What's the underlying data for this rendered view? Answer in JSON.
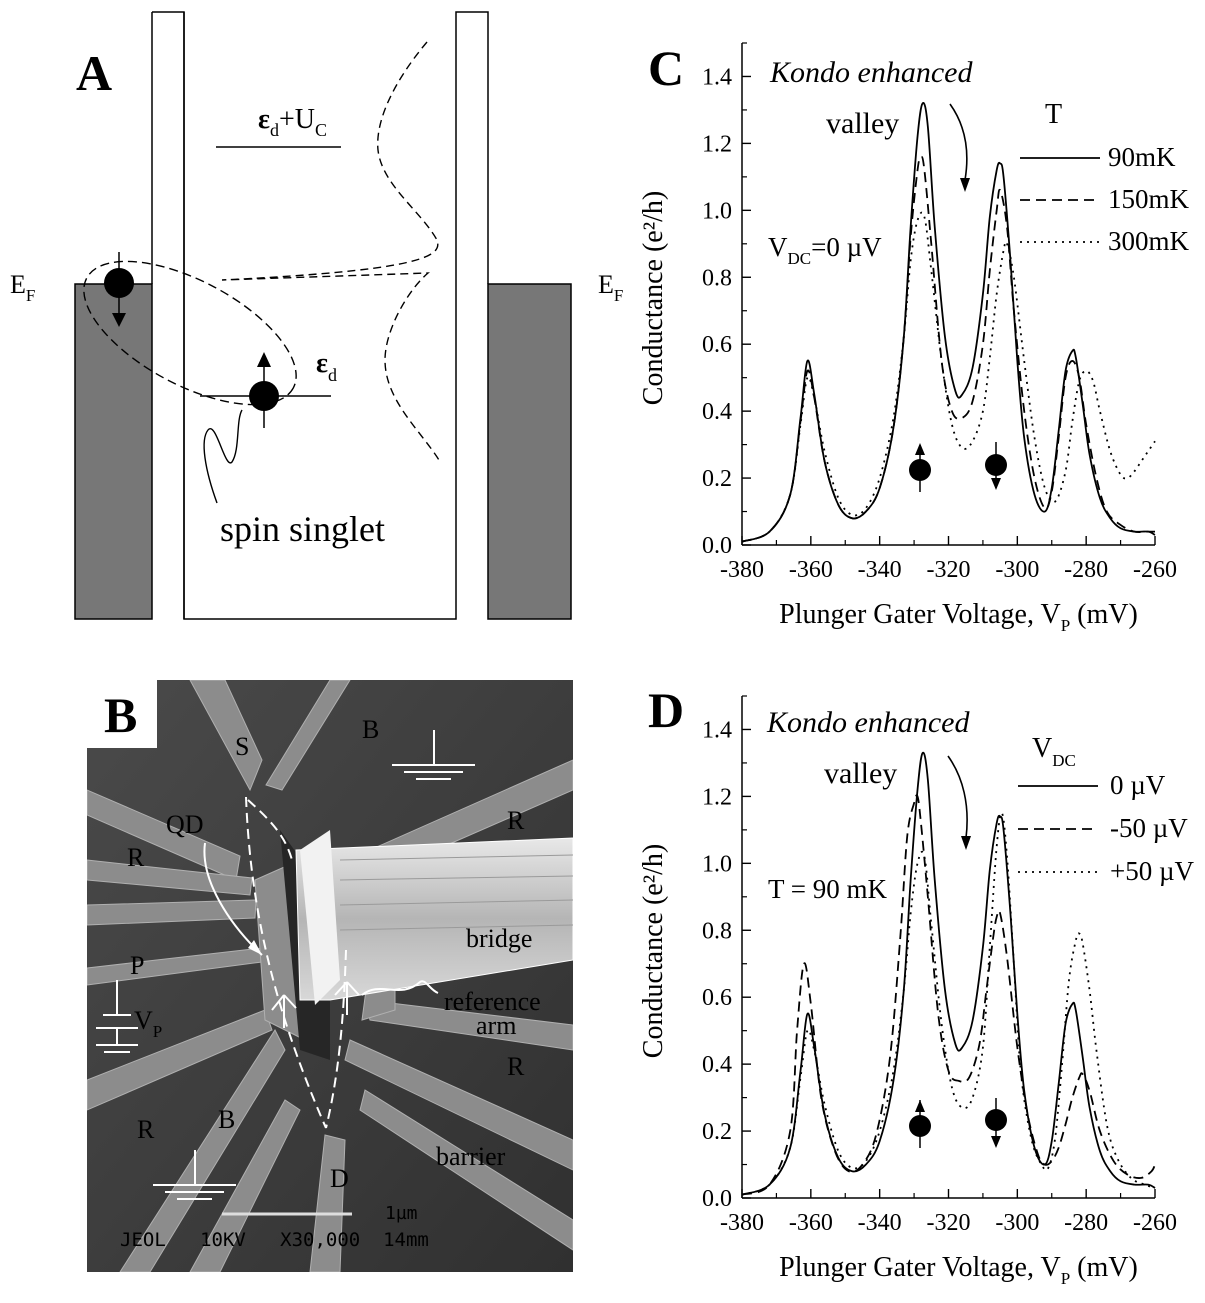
{
  "panelA": {
    "label": "A",
    "ef_left": "E",
    "ef_right": "E",
    "ef_sub": "F",
    "level_top": "ε",
    "level_top_sub": "d",
    "level_top_plus": "+U",
    "level_top_sub2": "C",
    "level_bottom": "ε",
    "level_bottom_sub": "d",
    "caption": "spin singlet"
  },
  "panelB": {
    "label": "B",
    "labels": {
      "S": "S",
      "B_top": "B",
      "R_top_right": "R",
      "QD": "QD",
      "R_left": "R",
      "P": "P",
      "VP": "V",
      "VP_sub": "P",
      "bridge": "bridge",
      "reference": "reference",
      "arm": "arm",
      "R_right": "R",
      "R_bottom_left": "R",
      "B_bottom": "B",
      "D": "D",
      "barrier": "barrier"
    },
    "scalebar": "1µm",
    "footer": "JEOL   10KV   X30,000  14mm"
  },
  "panelC": {
    "label": "C",
    "annotation_line1": "Kondo enhanced",
    "annotation_line2": "valley",
    "legend_title": "T",
    "condition": "V",
    "condition_sub": "DC",
    "condition_value": "=0 µV",
    "chart_data": {
      "type": "line",
      "xlabel": "Plunger Gater Voltage, V",
      "xlabel_sub": "P",
      "xlabel_unit": " (mV)",
      "ylabel": "Conductance (e²/h)",
      "xlim": [
        -380,
        -260
      ],
      "ylim": [
        0,
        1.5
      ],
      "xticks": [
        -380,
        -360,
        -340,
        -320,
        -300,
        -280,
        -260
      ],
      "yticks": [
        0.0,
        0.2,
        0.4,
        0.6,
        0.8,
        1.0,
        1.2,
        1.4
      ],
      "series": [
        {
          "name": "90mK",
          "style": "solid",
          "x": [
            -380,
            -372,
            -366,
            -363,
            -361,
            -359,
            -356,
            -352,
            -348,
            -344,
            -340,
            -336,
            -333,
            -331,
            -329,
            -327.5,
            -326,
            -324,
            -321,
            -318,
            -316,
            -313,
            -310,
            -308,
            -306,
            -305,
            -304,
            -302,
            -300,
            -298,
            -295,
            -292,
            -290,
            -288,
            -286,
            -284,
            -283,
            -281,
            -279,
            -276,
            -273,
            -270,
            -266,
            -262,
            -260
          ],
          "y": [
            0.01,
            0.04,
            0.15,
            0.38,
            0.55,
            0.45,
            0.25,
            0.12,
            0.08,
            0.1,
            0.17,
            0.35,
            0.62,
            0.95,
            1.22,
            1.32,
            1.25,
            0.95,
            0.62,
            0.46,
            0.45,
            0.53,
            0.75,
            0.98,
            1.12,
            1.14,
            1.1,
            0.85,
            0.55,
            0.32,
            0.15,
            0.1,
            0.17,
            0.34,
            0.52,
            0.58,
            0.56,
            0.42,
            0.27,
            0.14,
            0.08,
            0.05,
            0.04,
            0.04,
            0.03
          ]
        },
        {
          "name": "150mK",
          "style": "dashed",
          "x": [
            -380,
            -372,
            -366,
            -363,
            -361,
            -359,
            -356,
            -352,
            -348,
            -344,
            -340,
            -336,
            -333,
            -331,
            -329,
            -328,
            -327,
            -325,
            -322,
            -319,
            -316,
            -313,
            -310,
            -308,
            -306,
            -305,
            -303,
            -301,
            -298,
            -295,
            -292,
            -290,
            -288,
            -286,
            -284,
            -282,
            -280,
            -277,
            -274,
            -270,
            -266,
            -262,
            -260
          ],
          "y": [
            0.01,
            0.04,
            0.15,
            0.37,
            0.52,
            0.44,
            0.25,
            0.12,
            0.08,
            0.1,
            0.17,
            0.35,
            0.62,
            0.92,
            1.12,
            1.16,
            1.12,
            0.9,
            0.55,
            0.4,
            0.38,
            0.43,
            0.6,
            0.82,
            1.0,
            1.06,
            0.95,
            0.7,
            0.4,
            0.2,
            0.11,
            0.16,
            0.32,
            0.5,
            0.55,
            0.5,
            0.36,
            0.2,
            0.1,
            0.06,
            0.04,
            0.04,
            0.04
          ]
        },
        {
          "name": "300mK",
          "style": "dotted",
          "x": [
            -380,
            -372,
            -366,
            -363,
            -361,
            -359,
            -356,
            -352,
            -348,
            -344,
            -340,
            -336,
            -333,
            -331,
            -329,
            -327,
            -325,
            -322,
            -319,
            -316,
            -313,
            -310,
            -308,
            -306,
            -304,
            -303,
            -301,
            -298,
            -295,
            -292,
            -289,
            -286,
            -284,
            -282,
            -280,
            -278,
            -276,
            -273,
            -270,
            -268,
            -266,
            -264,
            -262,
            -260
          ],
          "y": [
            0.01,
            0.04,
            0.15,
            0.36,
            0.5,
            0.44,
            0.28,
            0.14,
            0.09,
            0.11,
            0.2,
            0.38,
            0.62,
            0.85,
            0.97,
            0.98,
            0.82,
            0.55,
            0.36,
            0.29,
            0.31,
            0.4,
            0.56,
            0.75,
            0.88,
            0.9,
            0.8,
            0.55,
            0.32,
            0.17,
            0.13,
            0.22,
            0.37,
            0.49,
            0.52,
            0.49,
            0.4,
            0.28,
            0.21,
            0.2,
            0.22,
            0.25,
            0.28,
            0.31
          ]
        }
      ]
    }
  },
  "panelD": {
    "label": "D",
    "annotation_line1": "Kondo enhanced",
    "annotation_line2": "valley",
    "legend_title": "V",
    "legend_title_sub": "DC",
    "condition": "T = 90 mK",
    "chart_data": {
      "type": "line",
      "xlabel": "Plunger Gater Voltage, V",
      "xlabel_sub": "P",
      "xlabel_unit": " (mV)",
      "ylabel": "Conductance (e²/h)",
      "xlim": [
        -380,
        -260
      ],
      "ylim": [
        0,
        1.5
      ],
      "xticks": [
        -380,
        -360,
        -340,
        -320,
        -300,
        -280,
        -260
      ],
      "yticks": [
        0.0,
        0.2,
        0.4,
        0.6,
        0.8,
        1.0,
        1.2,
        1.4
      ],
      "series": [
        {
          "name": "0 µV",
          "style": "solid",
          "x": [
            -380,
            -372,
            -366,
            -363,
            -361,
            -359,
            -356,
            -352,
            -348,
            -344,
            -340,
            -336,
            -333,
            -331,
            -329,
            -327.5,
            -326,
            -324,
            -321,
            -318,
            -316,
            -313,
            -310,
            -308,
            -306,
            -305,
            -304,
            -302,
            -300,
            -298,
            -295,
            -292,
            -290,
            -288,
            -286,
            -284,
            -283,
            -281,
            -279,
            -276,
            -273,
            -270,
            -266,
            -262,
            -260
          ],
          "y": [
            0.01,
            0.04,
            0.15,
            0.38,
            0.55,
            0.45,
            0.25,
            0.12,
            0.08,
            0.1,
            0.17,
            0.35,
            0.62,
            0.95,
            1.22,
            1.33,
            1.25,
            0.95,
            0.62,
            0.46,
            0.45,
            0.53,
            0.75,
            0.98,
            1.12,
            1.14,
            1.1,
            0.85,
            0.55,
            0.32,
            0.15,
            0.1,
            0.17,
            0.34,
            0.52,
            0.58,
            0.56,
            0.42,
            0.27,
            0.14,
            0.08,
            0.05,
            0.04,
            0.04,
            0.03
          ]
        },
        {
          "name": "-50 µV",
          "style": "dashed",
          "x": [
            -380,
            -372,
            -366,
            -364,
            -362,
            -360,
            -357,
            -353,
            -349,
            -345,
            -341,
            -337,
            -334,
            -332,
            -330,
            -329,
            -328,
            -326,
            -323,
            -320,
            -317,
            -314,
            -311,
            -309,
            -307,
            -306,
            -305,
            -303,
            -300,
            -297,
            -294,
            -292,
            -290,
            -288,
            -286,
            -284,
            -282,
            -281,
            -279,
            -276,
            -272,
            -268,
            -264,
            -261,
            -260
          ],
          "y": [
            0.01,
            0.04,
            0.2,
            0.5,
            0.7,
            0.58,
            0.3,
            0.14,
            0.08,
            0.1,
            0.19,
            0.42,
            0.78,
            1.08,
            1.18,
            1.2,
            1.12,
            0.9,
            0.55,
            0.38,
            0.35,
            0.36,
            0.46,
            0.62,
            0.78,
            0.84,
            0.85,
            0.72,
            0.45,
            0.25,
            0.13,
            0.1,
            0.11,
            0.15,
            0.22,
            0.3,
            0.36,
            0.37,
            0.32,
            0.2,
            0.11,
            0.07,
            0.06,
            0.08,
            0.1
          ]
        },
        {
          "name": "+50 µV",
          "style": "dotted",
          "x": [
            -380,
            -372,
            -366,
            -363,
            -361,
            -359,
            -356,
            -352,
            -348,
            -344,
            -340,
            -336,
            -333,
            -331,
            -329,
            -327,
            -325,
            -322,
            -319,
            -316,
            -313,
            -310,
            -308,
            -306,
            -304.5,
            -303,
            -301,
            -299,
            -296,
            -293,
            -291,
            -289,
            -287,
            -285,
            -283,
            -282,
            -281,
            -279,
            -277,
            -274,
            -271,
            -267,
            -263,
            -260
          ],
          "y": [
            0.01,
            0.04,
            0.15,
            0.36,
            0.5,
            0.44,
            0.28,
            0.14,
            0.09,
            0.11,
            0.2,
            0.38,
            0.62,
            0.85,
            1.0,
            1.02,
            0.82,
            0.52,
            0.33,
            0.27,
            0.3,
            0.45,
            0.75,
            1.05,
            1.15,
            1.02,
            0.7,
            0.38,
            0.18,
            0.1,
            0.09,
            0.18,
            0.4,
            0.65,
            0.77,
            0.79,
            0.76,
            0.62,
            0.44,
            0.22,
            0.12,
            0.06,
            0.04,
            0.03
          ]
        }
      ]
    }
  }
}
